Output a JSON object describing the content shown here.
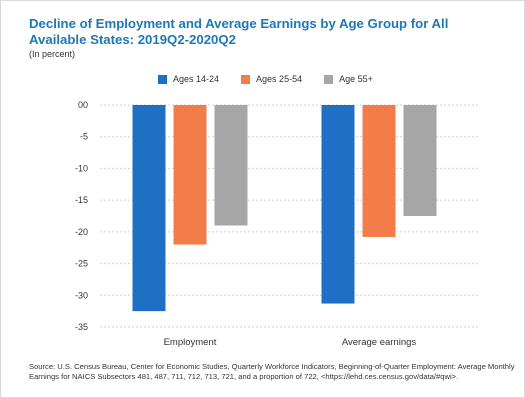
{
  "title": "Decline of Employment and Average Earnings by Age Group for All Available States: 2019Q2-2020Q2",
  "subtitle": "(In percent)",
  "source": "Source: U.S. Census Bureau, Center for Economic Studies, Quarterly Workforce Indicators, Beginning-of-Quarter Employment: Average Monthly Earnings for NAICS Subsectors 481, 487, 711, 712, 713, 721, and a proportion of 722, <https://lehd.ces.census.gov/data/#qwi>.",
  "chart_data": {
    "type": "bar",
    "categories": [
      "Employment",
      "Average earnings"
    ],
    "series": [
      {
        "name": "Ages 14-24",
        "color": "#1f6fc5",
        "values": [
          -32.5,
          -31.3
        ]
      },
      {
        "name": "Ages 25-54",
        "color": "#f47c48",
        "values": [
          -22.0,
          -20.8
        ]
      },
      {
        "name": "Age 55+",
        "color": "#a6a6a6",
        "values": [
          -19.0,
          -17.5
        ]
      }
    ],
    "yticks": [
      0,
      -5,
      -10,
      -15,
      -20,
      -25,
      -30,
      -35
    ],
    "ytick_labels": [
      "00",
      "-5",
      "-10",
      "-15",
      "-20",
      "-25",
      "-30",
      "-35"
    ],
    "ylim": [
      -35,
      0
    ],
    "grid": "horizontal",
    "legend": "top-center"
  }
}
